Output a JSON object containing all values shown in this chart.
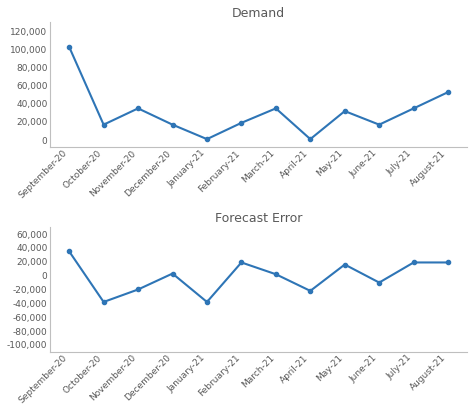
{
  "months": [
    "September-20",
    "October-20",
    "November-20",
    "December-20",
    "January-21",
    "February-21",
    "March-21",
    "April-21",
    "May-21",
    "June-21",
    "July-21",
    "August-21"
  ],
  "demand": [
    103000,
    17000,
    35000,
    17000,
    1000,
    19000,
    35000,
    1000,
    32000,
    17000,
    35000,
    53000
  ],
  "forecast_error": [
    35000,
    -38000,
    -20000,
    3000,
    -38000,
    19000,
    2000,
    -22000,
    16000,
    -10000,
    19000,
    19000
  ],
  "demand_title": "Demand",
  "forecast_title": "Forecast Error",
  "demand_ylim": [
    -8000,
    130000
  ],
  "demand_yticks": [
    0,
    20000,
    40000,
    60000,
    80000,
    100000,
    120000
  ],
  "forecast_ylim": [
    -110000,
    70000
  ],
  "forecast_yticks": [
    -100000,
    -80000,
    -60000,
    -40000,
    -20000,
    0,
    20000,
    40000,
    60000
  ],
  "line_color": "#2E75B6",
  "marker": "o",
  "marker_size": 3,
  "bg_color": "#FFFFFF",
  "plot_bg": "#F2F2F2",
  "grid_color": "#FFFFFF",
  "spine_color": "#BFBFBF",
  "font_color": "#595959",
  "title_fontsize": 9,
  "tick_fontsize": 6.5,
  "linewidth": 1.5
}
